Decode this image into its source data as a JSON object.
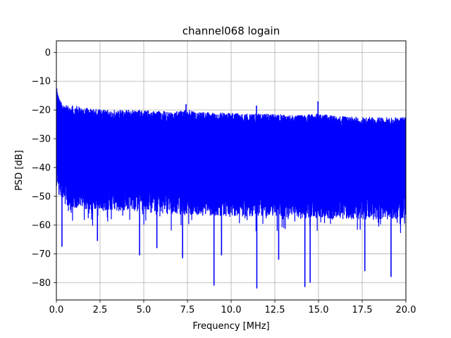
{
  "chart_data": {
    "type": "line",
    "title": "channel068 logain",
    "xlabel": "Frequency [MHz]",
    "ylabel": "PSD [dB]",
    "xlim": [
      0,
      20
    ],
    "ylim": [
      -86,
      4
    ],
    "xticks": [
      0.0,
      2.5,
      5.0,
      7.5,
      10.0,
      12.5,
      15.0,
      17.5,
      20.0
    ],
    "xtick_labels": [
      "0.0",
      "2.5",
      "5.0",
      "7.5",
      "10.0",
      "12.5",
      "15.0",
      "17.5",
      "20.0"
    ],
    "yticks": [
      0,
      -10,
      -20,
      -30,
      -40,
      -50,
      -60,
      -70,
      -80
    ],
    "ytick_labels": [
      "0",
      "−10",
      "−20",
      "−30",
      "−40",
      "−50",
      "−60",
      "−70",
      "−80"
    ],
    "grid": true,
    "series": [
      {
        "color": "#0000ff",
        "upper_envelope": {
          "x": [
            0.0,
            0.05,
            0.1,
            0.2,
            0.3,
            0.5,
            1.0,
            1.5,
            2.0,
            3.0,
            4.0,
            5.0,
            6.0,
            7.0,
            7.4,
            8.0,
            9.0,
            10.0,
            11.0,
            12.0,
            13.0,
            14.0,
            15.0,
            16.0,
            17.0,
            18.0,
            19.0,
            20.0
          ],
          "y": [
            -12.5,
            -13.5,
            -14.5,
            -16.5,
            -17.5,
            -18.0,
            -18.5,
            -19.0,
            -19.5,
            -20.0,
            -20.0,
            -20.0,
            -20.3,
            -20.5,
            -19.5,
            -20.5,
            -20.8,
            -21.0,
            -21.2,
            -21.3,
            -21.5,
            -21.8,
            -21.0,
            -22.0,
            -22.3,
            -22.5,
            -22.5,
            -22.5
          ]
        },
        "lower_envelope": {
          "x": [
            0.0,
            0.5,
            1.0,
            2.0,
            4.0,
            6.0,
            8.0,
            10.0,
            12.0,
            14.0,
            16.0,
            18.0,
            20.0
          ],
          "y": [
            -48.0,
            -53.0,
            -54.0,
            -55.0,
            -55.0,
            -56.0,
            -56.5,
            -57.0,
            -57.0,
            -57.5,
            -58.0,
            -58.0,
            -58.0
          ]
        },
        "peaks": [
          {
            "x": 14.97,
            "y": -17.0
          },
          {
            "x": 7.42,
            "y": -18.0
          },
          {
            "x": 11.45,
            "y": -18.5
          }
        ],
        "dips": [
          {
            "x": 0.32,
            "y": -67.5
          },
          {
            "x": 2.35,
            "y": -65.5
          },
          {
            "x": 4.76,
            "y": -70.5
          },
          {
            "x": 5.75,
            "y": -68.0
          },
          {
            "x": 7.22,
            "y": -71.5
          },
          {
            "x": 9.02,
            "y": -81.0
          },
          {
            "x": 9.45,
            "y": -70.5
          },
          {
            "x": 11.47,
            "y": -82.0
          },
          {
            "x": 12.72,
            "y": -72.0
          },
          {
            "x": 14.22,
            "y": -81.5
          },
          {
            "x": 14.52,
            "y": -80.0
          },
          {
            "x": 17.65,
            "y": -76.0
          },
          {
            "x": 19.15,
            "y": -78.0
          }
        ]
      }
    ]
  }
}
